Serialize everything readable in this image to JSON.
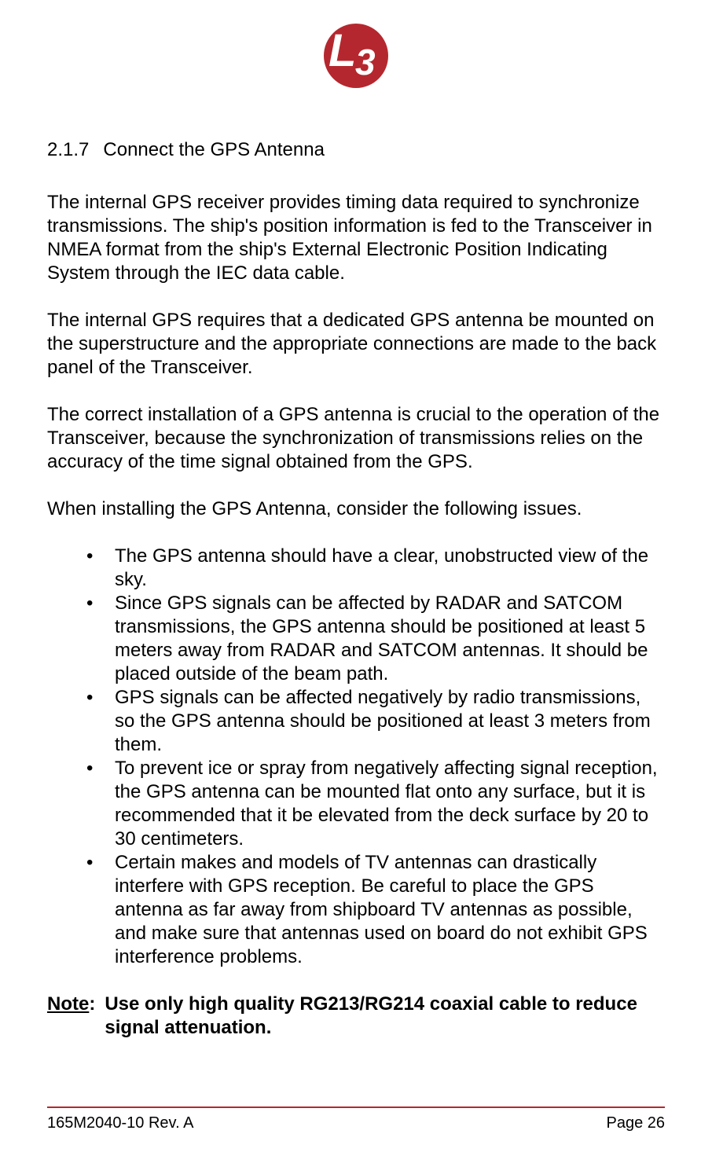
{
  "logo": {
    "letter": "L",
    "number": "3",
    "background_color": "#b5272e",
    "text_color": "#ffffff"
  },
  "heading": {
    "number": "2.1.7",
    "title": "Connect the GPS Antenna"
  },
  "paragraphs": {
    "p1": "The internal GPS receiver provides timing data required to synchronize transmissions. The ship's position information is fed to the Transceiver in NMEA format from the ship's External Electronic Position Indicating System through the IEC data cable.",
    "p2": "The internal GPS requires that a dedicated GPS antenna be mounted on the superstructure and the appropriate connections are made to the back panel of the Transceiver.",
    "p3": "The correct installation of a GPS antenna is crucial to the operation of the Transceiver, because the synchronization of transmissions relies on the accuracy of the time signal obtained from the GPS.",
    "p4": "When installing the GPS Antenna, consider the following issues."
  },
  "bullets": {
    "b1": "The GPS antenna should have a clear, unobstructed view of the sky.",
    "b2": "Since GPS signals can be affected by RADAR and SATCOM transmissions, the GPS antenna should be positioned at least 5 meters away from RADAR and SATCOM antennas. It should be placed outside of the beam path.",
    "b3": "GPS signals can be affected negatively by radio transmissions, so the GPS antenna should be positioned at least 3 meters from them.",
    "b4": "To prevent ice or spray from negatively affecting signal reception, the GPS antenna can be mounted flat onto any surface, but it is recommended that it be elevated from the deck surface by 20 to 30 centimeters.",
    "b5": "Certain makes and models of TV antennas can drastically interfere with GPS reception. Be careful to place the GPS antenna as far away from shipboard TV antennas as possible, and make sure that antennas used on board do not exhibit GPS interference problems."
  },
  "note": {
    "label": "Note",
    "colon": ":",
    "text": "Use only high quality RG213/RG214 coaxial cable to reduce signal attenuation."
  },
  "footer": {
    "left": "165M2040-10 Rev. A",
    "right": "Page 26",
    "line_color": "#b5272e"
  }
}
